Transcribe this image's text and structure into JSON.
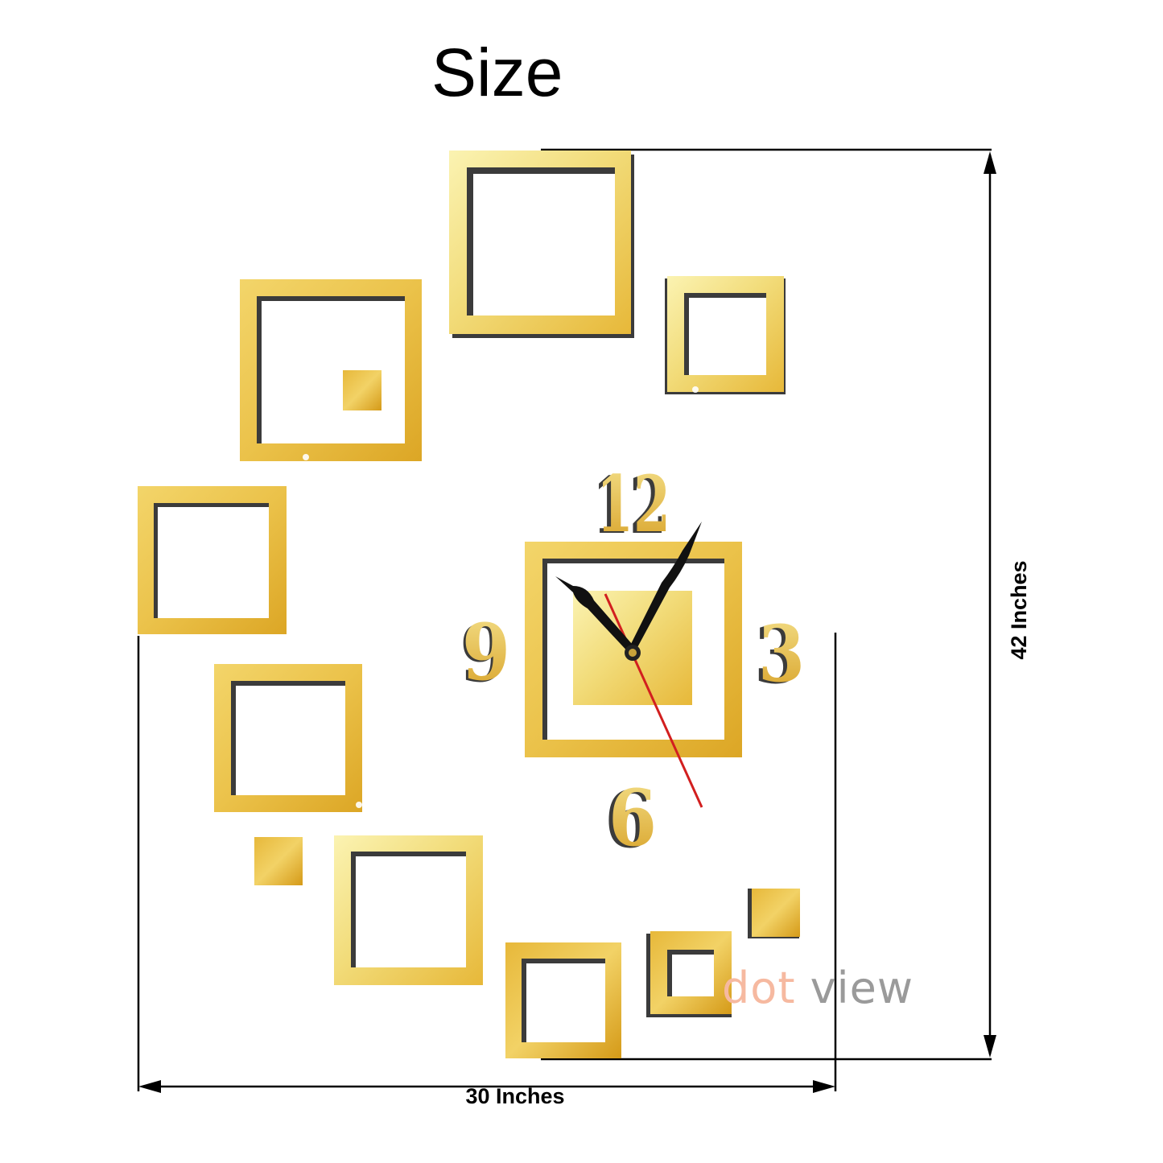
{
  "title": "Size",
  "dimensions": {
    "width_label": "30 Inches",
    "height_label": "42 Inches"
  },
  "clock": {
    "numerals": [
      "12",
      "3",
      "6",
      "9"
    ],
    "hands": [
      "hour-hand",
      "minute-hand",
      "second-hand"
    ]
  },
  "watermark": {
    "part1": "dot",
    "part2": "view"
  },
  "colors": {
    "gold_light": "#f6ec9a",
    "gold_mid": "#f0cc55",
    "gold_dark": "#d9a21b",
    "shadow": "#3a3a3a",
    "second_hand": "#d21f1f",
    "hands": "#111111",
    "dimension_lines": "#000000"
  }
}
